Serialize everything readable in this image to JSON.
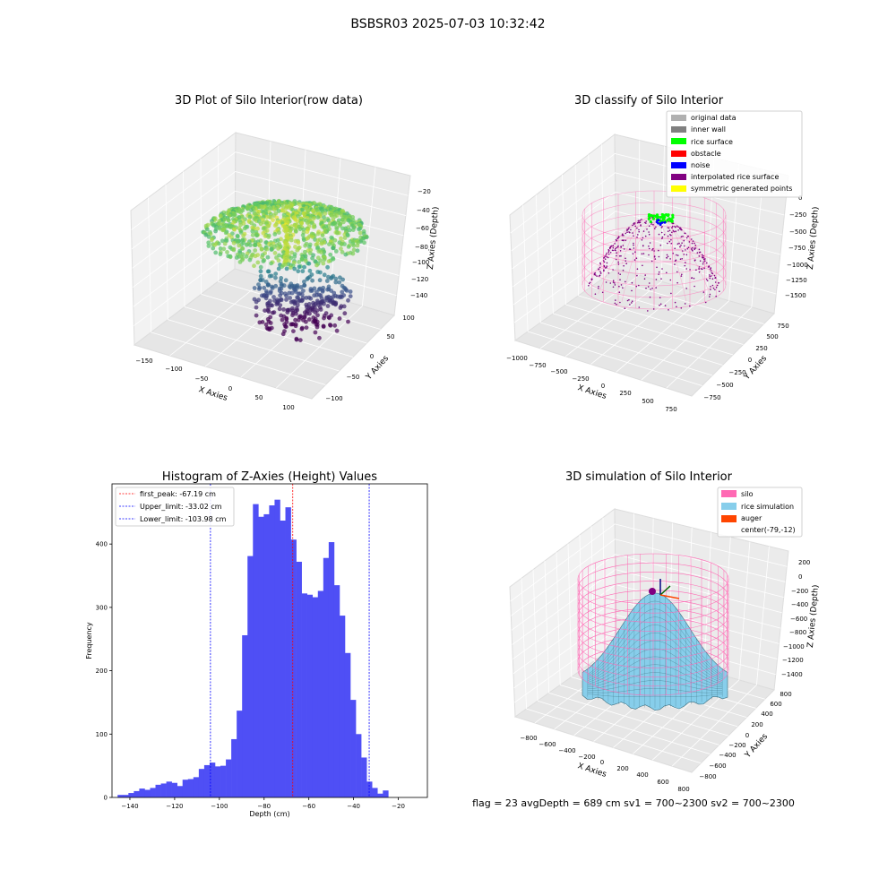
{
  "suptitle": "BSBSR03 2025-07-03 10:32:42",
  "footer": "flag = 23  avgDepth = 689 cm  sv1 = 700~2300  sv2 = 700~2300",
  "colors": {
    "histogram_bar": "#4f4ff5",
    "first_peak_line": "#ff0000",
    "limit_line": "#0000ff",
    "silo_wire": "#ff69b4",
    "rice_surface": "#87ceeb",
    "auger": "#ff4500",
    "pane": "#f2f2f2"
  },
  "panels": {
    "raw": {
      "title": "3D Plot of Silo Interior(row data)",
      "xlabel": "X Axies",
      "ylabel": "Y Axies",
      "zlabel": "Z Axies (Depth)",
      "xticks": [
        "−150",
        "−100",
        "−50",
        "0",
        "50",
        "100"
      ],
      "yticks": [
        "−100",
        "−50",
        "0",
        "50",
        "100"
      ],
      "zticks": [
        "−20",
        "−40",
        "−60",
        "−80",
        "−100",
        "−120",
        "−140"
      ]
    },
    "classify": {
      "title": "3D classify of Silo Interior",
      "xlabel": "X Axies",
      "ylabel": "Y Axies",
      "zlabel": "Z Axies (Depth)",
      "xticks": [
        "−1000",
        "−750",
        "−500",
        "−250",
        "0",
        "250",
        "500",
        "750"
      ],
      "yticks": [
        "−750",
        "−500",
        "−250",
        "0",
        "250",
        "500",
        "750"
      ],
      "zticks": [
        "0",
        "−250",
        "−500",
        "−750",
        "−1000",
        "−1250",
        "−1500"
      ],
      "legend": [
        {
          "label": "original data",
          "color": "#b0b0b0"
        },
        {
          "label": "inner wall",
          "color": "#808080"
        },
        {
          "label": "rice surface",
          "color": "#00ff00"
        },
        {
          "label": "obstacle",
          "color": "#ff0000"
        },
        {
          "label": "noise",
          "color": "#0000ff"
        },
        {
          "label": "interpolated rice surface",
          "color": "#800080"
        },
        {
          "label": "symmetric generated points",
          "color": "#ffff00"
        }
      ]
    },
    "simulation": {
      "title": "3D simulation of Silo Interior",
      "xlabel": "X Axies",
      "ylabel": "Y Axies",
      "zlabel": "Z Axies (Depth)",
      "xticks": [
        "−800",
        "−600",
        "−400",
        "−200",
        "0",
        "200",
        "400",
        "600",
        "800"
      ],
      "yticks": [
        "−800",
        "−600",
        "−400",
        "−200",
        "0",
        "200",
        "400",
        "600",
        "800"
      ],
      "zticks": [
        "200",
        "0",
        "−200",
        "−400",
        "−600",
        "−800",
        "−1000",
        "−1200",
        "−1400"
      ],
      "legend": [
        {
          "label": "silo",
          "color": "#ff69b4"
        },
        {
          "label": "rice simulation",
          "color": "#87ceeb"
        },
        {
          "label": "auger",
          "color": "#ff4500"
        },
        {
          "label": "center(-79,-12)",
          "color": ""
        }
      ]
    }
  },
  "chart_data": {
    "type": "bar",
    "title": "Histogram of Z-Axies (Height) Values",
    "xlabel": "Depth (cm)",
    "ylabel": "Frequency",
    "xlim": [
      -148,
      -7
    ],
    "ylim": [
      0,
      495
    ],
    "xticks": [
      -140,
      -120,
      -100,
      -80,
      -60,
      -40,
      -20
    ],
    "yticks": [
      0,
      100,
      200,
      300,
      400
    ],
    "bin_start": -145.5,
    "bin_width": 2.42,
    "values": [
      4,
      4,
      7,
      10,
      14,
      12,
      15,
      20,
      22,
      25,
      23,
      18,
      28,
      29,
      32,
      45,
      51,
      55,
      49,
      50,
      60,
      92,
      137,
      256,
      381,
      463,
      443,
      447,
      461,
      470,
      437,
      458,
      407,
      372,
      322,
      320,
      316,
      326,
      378,
      403,
      335,
      287,
      228,
      154,
      100,
      63,
      25,
      15,
      6,
      11
    ],
    "lines": [
      {
        "label": "first_peak: -67.19 cm",
        "x": -67.19,
        "color": "#ff0000"
      },
      {
        "label": "Upper_limit: -33.02 cm",
        "x": -33.02,
        "color": "#0000ff"
      },
      {
        "label": "Lower_limit: -103.98 cm",
        "x": -103.98,
        "color": "#0000ff"
      }
    ]
  }
}
